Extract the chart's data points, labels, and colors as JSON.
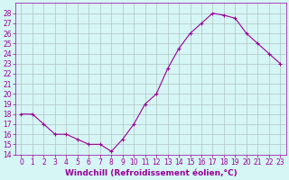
{
  "x": [
    0,
    1,
    2,
    3,
    4,
    5,
    6,
    7,
    8,
    9,
    10,
    11,
    12,
    13,
    14,
    15,
    16,
    17,
    18,
    19,
    20,
    21,
    22,
    23
  ],
  "y": [
    18,
    18,
    17,
    16,
    16,
    15.5,
    15,
    15,
    14.3,
    15.5,
    17,
    19,
    20,
    22.5,
    24.5,
    26,
    27,
    28,
    27.8,
    27.5,
    26,
    25,
    24,
    23
  ],
  "line_color": "#990099",
  "marker": "+",
  "bg_color": "#d6f5f5",
  "grid_color": "#b0c4c4",
  "xlabel": "Windchill (Refroidissement éolien,°C)",
  "xlabel_color": "#990099",
  "ylim": [
    14,
    29
  ],
  "xlim_min": -0.5,
  "xlim_max": 23.5,
  "yticks": [
    14,
    15,
    16,
    17,
    18,
    19,
    20,
    21,
    22,
    23,
    24,
    25,
    26,
    27,
    28
  ],
  "xticks": [
    0,
    1,
    2,
    3,
    4,
    5,
    6,
    7,
    8,
    9,
    10,
    11,
    12,
    13,
    14,
    15,
    16,
    17,
    18,
    19,
    20,
    21,
    22,
    23
  ],
  "tick_color": "#990099",
  "tick_fontsize": 5.5,
  "xlabel_fontsize": 6.5,
  "spine_color": "#990099"
}
